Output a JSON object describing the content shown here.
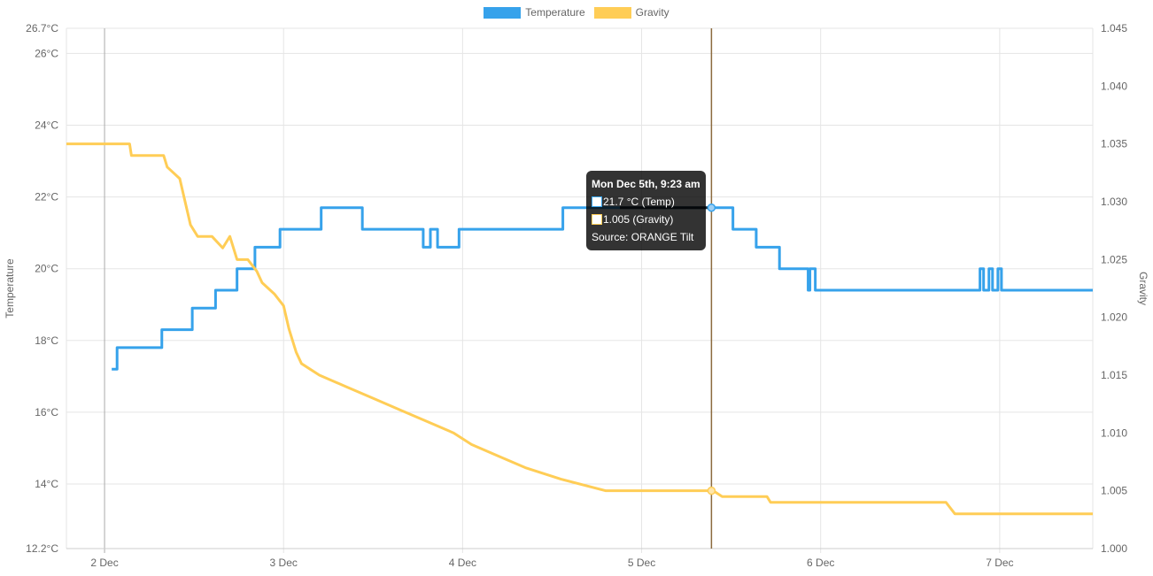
{
  "chart_data": {
    "type": "line",
    "title": "",
    "legend": {
      "position": "top",
      "items": [
        "Temperature",
        "Gravity"
      ]
    },
    "xlabel": "",
    "x_unit": "day of December",
    "xlim": [
      1.787,
      7.52
    ],
    "x_ticks": [
      {
        "v": 2,
        "label": "2 Dec"
      },
      {
        "v": 3,
        "label": "3 Dec"
      },
      {
        "v": 4,
        "label": "4 Dec"
      },
      {
        "v": 5,
        "label": "5 Dec"
      },
      {
        "v": 6,
        "label": "6 Dec"
      },
      {
        "v": 7,
        "label": "7 Dec"
      }
    ],
    "y_left": {
      "label": "Temperature",
      "lim": [
        12.2,
        26.7
      ],
      "ticks": [
        {
          "v": 12.2,
          "label": "12.2°C"
        },
        {
          "v": 14,
          "label": "14°C"
        },
        {
          "v": 16,
          "label": "16°C"
        },
        {
          "v": 18,
          "label": "18°C"
        },
        {
          "v": 20,
          "label": "20°C"
        },
        {
          "v": 22,
          "label": "22°C"
        },
        {
          "v": 24,
          "label": "24°C"
        },
        {
          "v": 26,
          "label": "26°C"
        },
        {
          "v": 26.7,
          "label": "26.7°C"
        }
      ]
    },
    "y_right": {
      "label": "Gravity",
      "lim": [
        1.0,
        1.045
      ],
      "ticks": [
        "1.000",
        "1.005",
        "1.010",
        "1.015",
        "1.020",
        "1.025",
        "1.030",
        "1.035",
        "1.040",
        "1.045"
      ]
    },
    "grid": true,
    "series": [
      {
        "name": "Temperature",
        "axis": "left",
        "color": "#36a2eb",
        "step": true,
        "points": [
          [
            2.04,
            17.2
          ],
          [
            2.07,
            17.8
          ],
          [
            2.32,
            18.3
          ],
          [
            2.49,
            18.9
          ],
          [
            2.62,
            19.4
          ],
          [
            2.74,
            20.0
          ],
          [
            2.84,
            20.6
          ],
          [
            2.98,
            21.1
          ],
          [
            3.21,
            21.7
          ],
          [
            3.44,
            21.1
          ],
          [
            3.78,
            20.6
          ],
          [
            3.82,
            21.1
          ],
          [
            3.86,
            20.6
          ],
          [
            3.98,
            21.1
          ],
          [
            4.56,
            21.7
          ],
          [
            5.51,
            21.1
          ],
          [
            5.64,
            20.6
          ],
          [
            5.77,
            20.0
          ],
          [
            5.93,
            19.4
          ],
          [
            5.94,
            20.0
          ],
          [
            5.97,
            19.4
          ],
          [
            6.89,
            20.0
          ],
          [
            6.91,
            19.4
          ],
          [
            6.94,
            20.0
          ],
          [
            6.96,
            19.4
          ],
          [
            6.99,
            20.0
          ],
          [
            7.01,
            19.4
          ],
          [
            7.52,
            19.4
          ]
        ]
      },
      {
        "name": "Gravity",
        "axis": "right",
        "color": "#ffcd56",
        "step": false,
        "points": [
          [
            1.787,
            1.035
          ],
          [
            2.14,
            1.035
          ],
          [
            2.15,
            1.034
          ],
          [
            2.33,
            1.034
          ],
          [
            2.35,
            1.033
          ],
          [
            2.42,
            1.032
          ],
          [
            2.45,
            1.03
          ],
          [
            2.48,
            1.028
          ],
          [
            2.52,
            1.027
          ],
          [
            2.6,
            1.027
          ],
          [
            2.66,
            1.026
          ],
          [
            2.7,
            1.027
          ],
          [
            2.74,
            1.025
          ],
          [
            2.8,
            1.025
          ],
          [
            2.85,
            1.024
          ],
          [
            2.88,
            1.023
          ],
          [
            2.95,
            1.022
          ],
          [
            3.0,
            1.021
          ],
          [
            3.03,
            1.019
          ],
          [
            3.07,
            1.017
          ],
          [
            3.1,
            1.016
          ],
          [
            3.2,
            1.015
          ],
          [
            3.35,
            1.014
          ],
          [
            3.5,
            1.013
          ],
          [
            3.65,
            1.012
          ],
          [
            3.8,
            1.011
          ],
          [
            3.95,
            1.01
          ],
          [
            4.05,
            1.009
          ],
          [
            4.2,
            1.008
          ],
          [
            4.35,
            1.007
          ],
          [
            4.55,
            1.006
          ],
          [
            4.8,
            1.005
          ],
          [
            5.4,
            1.005
          ],
          [
            5.45,
            1.0045
          ],
          [
            5.7,
            1.0045
          ],
          [
            5.72,
            1.004
          ],
          [
            6.7,
            1.004
          ],
          [
            6.75,
            1.003
          ],
          [
            7.52,
            1.003
          ]
        ]
      }
    ],
    "crosshair_x": 5.39
  },
  "tooltip": {
    "title": "Mon Dec 5th, 9:23 am",
    "temp": "21.7 °C (Temp)",
    "gravity": "1.005 (Gravity)",
    "source": "Source: ORANGE Tilt"
  }
}
